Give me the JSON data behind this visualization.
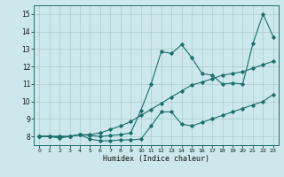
{
  "xlabel": "Humidex (Indice chaleur)",
  "ylabel": "",
  "bg_color": "#cce8ec",
  "grid_color": "#aacccc",
  "line_color": "#1a6e6a",
  "xlim": [
    -0.5,
    23.5
  ],
  "ylim": [
    7.5,
    15.5
  ],
  "xticks": [
    0,
    1,
    2,
    3,
    4,
    5,
    6,
    7,
    8,
    9,
    10,
    11,
    12,
    13,
    14,
    15,
    16,
    17,
    18,
    19,
    20,
    21,
    22,
    23
  ],
  "yticks": [
    8,
    9,
    10,
    11,
    12,
    13,
    14,
    15
  ],
  "line1_x": [
    0,
    1,
    2,
    3,
    4,
    5,
    6,
    7,
    8,
    9,
    10,
    11,
    12,
    13,
    14,
    15,
    16,
    17,
    18,
    19,
    20,
    21,
    22,
    23
  ],
  "line1_y": [
    8.0,
    8.0,
    8.0,
    8.0,
    8.1,
    7.85,
    7.75,
    7.75,
    7.8,
    7.8,
    7.85,
    8.6,
    9.4,
    9.4,
    8.7,
    8.6,
    8.8,
    9.0,
    9.2,
    9.4,
    9.6,
    9.8,
    10.0,
    10.4
  ],
  "line2_x": [
    0,
    1,
    2,
    3,
    4,
    5,
    6,
    7,
    8,
    9,
    10,
    11,
    12,
    13,
    14,
    15,
    16,
    17,
    18,
    19,
    20,
    21,
    22,
    23
  ],
  "line2_y": [
    8.0,
    8.0,
    7.9,
    8.0,
    8.1,
    8.05,
    8.0,
    8.05,
    8.1,
    8.2,
    9.5,
    11.0,
    12.85,
    12.75,
    13.25,
    12.5,
    11.6,
    11.5,
    11.0,
    11.05,
    11.0,
    13.3,
    15.0,
    13.7
  ],
  "line3_x": [
    0,
    1,
    2,
    3,
    4,
    5,
    6,
    7,
    8,
    9,
    10,
    11,
    12,
    13,
    14,
    15,
    16,
    17,
    18,
    19,
    20,
    21,
    22,
    23
  ],
  "line3_y": [
    8.0,
    8.0,
    8.0,
    8.0,
    8.1,
    8.1,
    8.2,
    8.4,
    8.6,
    8.85,
    9.2,
    9.55,
    9.9,
    10.25,
    10.6,
    10.95,
    11.1,
    11.3,
    11.5,
    11.6,
    11.7,
    11.9,
    12.1,
    12.3
  ]
}
